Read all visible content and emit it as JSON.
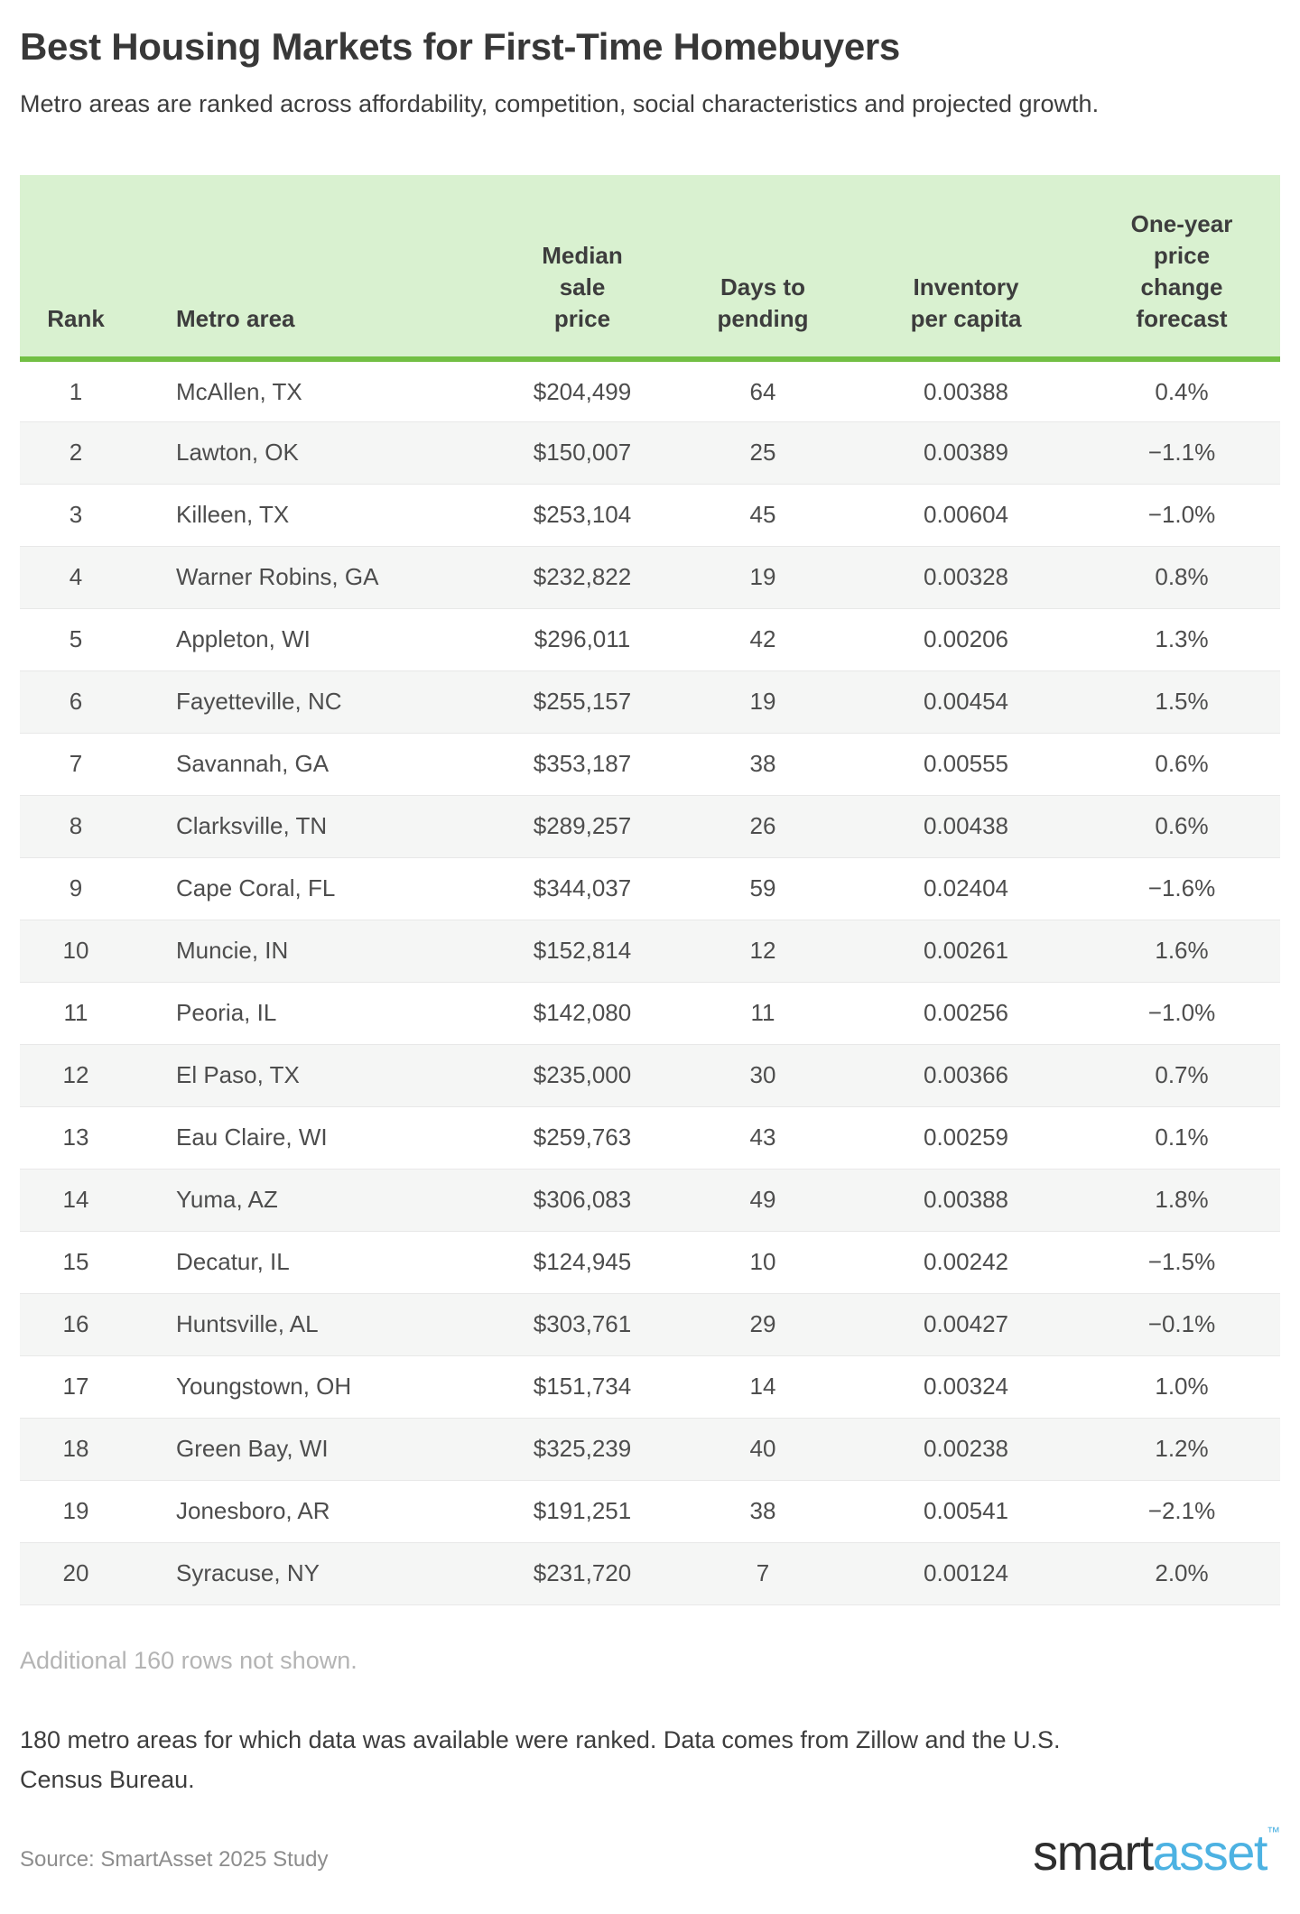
{
  "title": "Best Housing Markets for First-Time Homebuyers",
  "subtitle": "Metro areas are ranked across affordability, competition, social characteristics and projected growth.",
  "chart_data": {
    "type": "table",
    "title": "Best Housing Markets for First-Time Homebuyers",
    "columns": [
      "Rank",
      "Metro area",
      "Median sale price",
      "Days to pending",
      "Inventory per capita",
      "One-year price change forecast"
    ],
    "rows": [
      {
        "rank": "1",
        "metro": "McAllen, TX",
        "price": "$204,499",
        "days": "64",
        "inventory": "0.00388",
        "forecast": "0.4%"
      },
      {
        "rank": "2",
        "metro": "Lawton, OK",
        "price": "$150,007",
        "days": "25",
        "inventory": "0.00389",
        "forecast": "−1.1%"
      },
      {
        "rank": "3",
        "metro": "Killeen, TX",
        "price": "$253,104",
        "days": "45",
        "inventory": "0.00604",
        "forecast": "−1.0%"
      },
      {
        "rank": "4",
        "metro": "Warner Robins, GA",
        "price": "$232,822",
        "days": "19",
        "inventory": "0.00328",
        "forecast": "0.8%"
      },
      {
        "rank": "5",
        "metro": "Appleton, WI",
        "price": "$296,011",
        "days": "42",
        "inventory": "0.00206",
        "forecast": "1.3%"
      },
      {
        "rank": "6",
        "metro": "Fayetteville, NC",
        "price": "$255,157",
        "days": "19",
        "inventory": "0.00454",
        "forecast": "1.5%"
      },
      {
        "rank": "7",
        "metro": "Savannah, GA",
        "price": "$353,187",
        "days": "38",
        "inventory": "0.00555",
        "forecast": "0.6%"
      },
      {
        "rank": "8",
        "metro": "Clarksville, TN",
        "price": "$289,257",
        "days": "26",
        "inventory": "0.00438",
        "forecast": "0.6%"
      },
      {
        "rank": "9",
        "metro": "Cape Coral, FL",
        "price": "$344,037",
        "days": "59",
        "inventory": "0.02404",
        "forecast": "−1.6%"
      },
      {
        "rank": "10",
        "metro": "Muncie, IN",
        "price": "$152,814",
        "days": "12",
        "inventory": "0.00261",
        "forecast": "1.6%"
      },
      {
        "rank": "11",
        "metro": "Peoria, IL",
        "price": "$142,080",
        "days": "11",
        "inventory": "0.00256",
        "forecast": "−1.0%"
      },
      {
        "rank": "12",
        "metro": "El Paso, TX",
        "price": "$235,000",
        "days": "30",
        "inventory": "0.00366",
        "forecast": "0.7%"
      },
      {
        "rank": "13",
        "metro": "Eau Claire, WI",
        "price": "$259,763",
        "days": "43",
        "inventory": "0.00259",
        "forecast": "0.1%"
      },
      {
        "rank": "14",
        "metro": "Yuma, AZ",
        "price": "$306,083",
        "days": "49",
        "inventory": "0.00388",
        "forecast": "1.8%"
      },
      {
        "rank": "15",
        "metro": "Decatur, IL",
        "price": "$124,945",
        "days": "10",
        "inventory": "0.00242",
        "forecast": "−1.5%"
      },
      {
        "rank": "16",
        "metro": "Huntsville, AL",
        "price": "$303,761",
        "days": "29",
        "inventory": "0.00427",
        "forecast": "−0.1%"
      },
      {
        "rank": "17",
        "metro": "Youngstown, OH",
        "price": "$151,734",
        "days": "14",
        "inventory": "0.00324",
        "forecast": "1.0%"
      },
      {
        "rank": "18",
        "metro": "Green Bay, WI",
        "price": "$325,239",
        "days": "40",
        "inventory": "0.00238",
        "forecast": "1.2%"
      },
      {
        "rank": "19",
        "metro": "Jonesboro, AR",
        "price": "$191,251",
        "days": "38",
        "inventory": "0.00541",
        "forecast": "−2.1%"
      },
      {
        "rank": "20",
        "metro": "Syracuse, NY",
        "price": "$231,720",
        "days": "7",
        "inventory": "0.00124",
        "forecast": "2.0%"
      }
    ]
  },
  "table": {
    "headers": [
      "Rank",
      "Metro area",
      "Median\nsale\nprice",
      "Days to\npending",
      "Inventory\nper capita",
      "One-year\nprice\nchange\nforecast"
    ]
  },
  "additional_note": "Additional 160 rows not shown.",
  "footnote": "180 metro areas for which data was available were ranked. Data comes from Zillow and the U.S. Census Bureau.",
  "source": "Source: SmartAsset 2025 Study",
  "logo": {
    "smart": "smart",
    "asset": "asset",
    "tm": "™"
  },
  "colors": {
    "header_bg": "#d9f1d0",
    "header_border_green": "#72bf44",
    "row_stripe": "#f5f6f5",
    "note_gray": "#b4b4b4",
    "source_gray": "#8d8d8d",
    "logo_dark": "#2e2e2e",
    "logo_blue": "#4db2e2"
  }
}
